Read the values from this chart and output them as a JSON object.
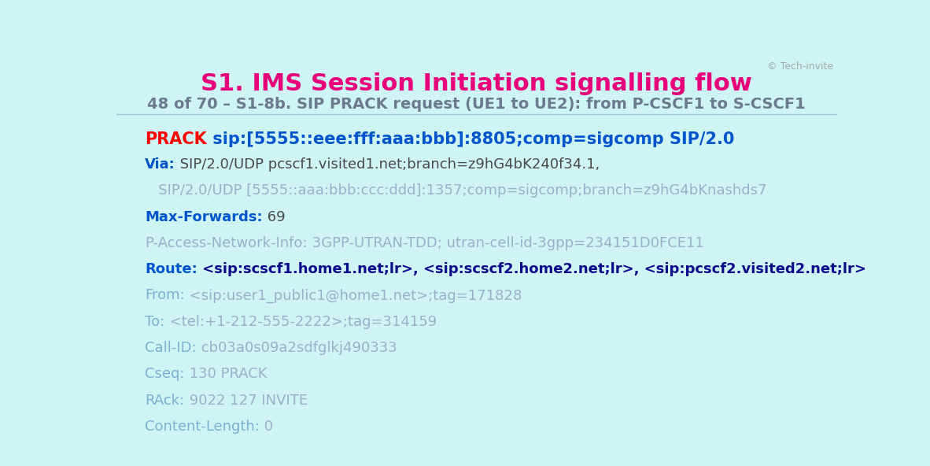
{
  "title": "S1. IMS Session Initiation signalling flow",
  "subtitle": "48 of 70 – S1-8b. SIP PRACK request (UE1 to UE2): from P-CSCF1 to S-CSCF1",
  "copyright": "© Tech-invite",
  "bg_color": "#cff4f4",
  "title_color": "#e8007a",
  "subtitle_color": "#6b7b8d",
  "copyright_color": "#a0a8b0",
  "separator_color": "#a0c8d8",
  "lines": [
    {
      "parts": [
        {
          "text": "PRACK",
          "color": "#ff0000",
          "bold": true,
          "size": 15
        },
        {
          "text": " sip:[5555::eee:fff:aaa:bbb]:8805;comp=sigcomp SIP/2.0",
          "color": "#0055cc",
          "bold": true,
          "size": 15
        }
      ]
    },
    {
      "parts": [
        {
          "text": "Via:",
          "color": "#0055cc",
          "bold": true,
          "size": 13
        },
        {
          "text": " SIP/2.0/UDP pcscf1.visited1.net;branch=z9hG4bK240f34.1,",
          "color": "#4a4a4a",
          "bold": false,
          "size": 13
        }
      ]
    },
    {
      "parts": [
        {
          "text": "   SIP/2.0/UDP [5555::aaa:bbb:ccc:ddd]:1357;comp=sigcomp;branch=z9hG4bKnashds7",
          "color": "#9ab0c8",
          "bold": false,
          "size": 13
        }
      ]
    },
    {
      "parts": [
        {
          "text": "Max-Forwards:",
          "color": "#0055cc",
          "bold": true,
          "size": 13
        },
        {
          "text": " 69",
          "color": "#4a4a4a",
          "bold": false,
          "size": 13
        }
      ]
    },
    {
      "parts": [
        {
          "text": "P-Access-Network-Info:",
          "color": "#9ab0c8",
          "bold": false,
          "size": 13
        },
        {
          "text": " 3GPP-UTRAN-TDD; utran-cell-id-3gpp=234151D0FCE11",
          "color": "#9ab0c8",
          "bold": false,
          "size": 13
        }
      ]
    },
    {
      "parts": [
        {
          "text": "Route:",
          "color": "#0055cc",
          "bold": true,
          "size": 13
        },
        {
          "text": " <sip:scscf1.home1.net;lr>, <sip:scscf2.home2.net;lr>, <sip:pcscf2.visited2.net;lr>",
          "color": "#0a0a8a",
          "bold": true,
          "size": 13
        }
      ]
    },
    {
      "parts": [
        {
          "text": "From:",
          "color": "#7ab0d0",
          "bold": false,
          "size": 13
        },
        {
          "text": " <sip:user1_public1@home1.net>;tag=171828",
          "color": "#9ab0c8",
          "bold": false,
          "size": 13
        }
      ]
    },
    {
      "parts": [
        {
          "text": "To:",
          "color": "#7ab0d0",
          "bold": false,
          "size": 13
        },
        {
          "text": " <tel:+1-212-555-2222>;tag=314159",
          "color": "#9ab0c8",
          "bold": false,
          "size": 13
        }
      ]
    },
    {
      "parts": [
        {
          "text": "Call-ID:",
          "color": "#7ab0d0",
          "bold": false,
          "size": 13
        },
        {
          "text": " cb03a0s09a2sdfglkj490333",
          "color": "#9ab0c8",
          "bold": false,
          "size": 13
        }
      ]
    },
    {
      "parts": [
        {
          "text": "Cseq:",
          "color": "#7ab0d0",
          "bold": false,
          "size": 13
        },
        {
          "text": " 130 PRACK",
          "color": "#9ab0c8",
          "bold": false,
          "size": 13
        }
      ]
    },
    {
      "parts": [
        {
          "text": "RAck:",
          "color": "#7ab0d0",
          "bold": false,
          "size": 13
        },
        {
          "text": " 9022 127 INVITE",
          "color": "#9ab0c8",
          "bold": false,
          "size": 13
        }
      ]
    },
    {
      "parts": [
        {
          "text": "Content-Length:",
          "color": "#7ab0d0",
          "bold": false,
          "size": 13
        },
        {
          "text": " 0",
          "color": "#9ab0c8",
          "bold": false,
          "size": 13
        }
      ]
    }
  ]
}
